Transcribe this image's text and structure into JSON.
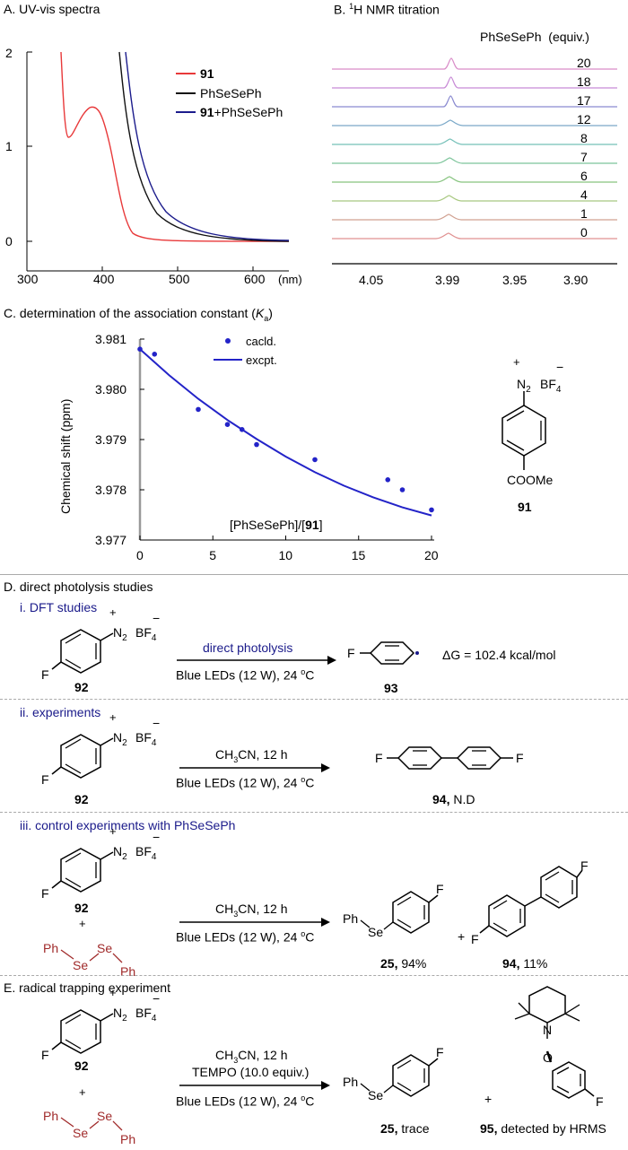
{
  "panelA": {
    "title": "A. UV-vis spectra",
    "yticks": [
      "2",
      "1",
      "0"
    ],
    "xticks": [
      "300",
      "400",
      "500",
      "600"
    ],
    "xunit": "(nm)",
    "legend": [
      {
        "name_bold": "91",
        "name_rest": "",
        "color": "#e8393a"
      },
      {
        "name_bold": "",
        "name_rest": "PhSeSePh",
        "color": "#111111"
      },
      {
        "name_bold": "91",
        "name_rest": "+PhSeSePh",
        "color": "#1c1c8c"
      }
    ]
  },
  "panelB": {
    "title_pre": "B. ",
    "title_sup": "1",
    "title_post": "H NMR titration",
    "col_header": "PhSeSePh  (equiv.)",
    "equiv": [
      "20",
      "18",
      "17",
      "12",
      "8",
      "7",
      "6",
      "4",
      "1",
      "0"
    ],
    "xticks": [
      "4.05",
      "3.99",
      "3.95",
      "3.90"
    ],
    "trace_colors": [
      "#d98cc8",
      "#c88ad6",
      "#8a8ad0",
      "#7aa8c8",
      "#74c0b8",
      "#7cc49a",
      "#86c47e",
      "#a8c880",
      "#d0a090",
      "#e09090"
    ]
  },
  "panelC": {
    "title_pre": "C. determination of the association constant (",
    "title_k": "K",
    "title_sub": "a",
    "title_post": ")",
    "ylabel": "Chemical shift (ppm)",
    "xlabel_pre": "[PhSeSePh]/[",
    "xlabel_bold": "91",
    "xlabel_post": "]",
    "legend_calc": "cacld.",
    "legend_expt": "excpt.",
    "yticks": [
      "3.981",
      "3.980",
      "3.979",
      "3.978",
      "3.977"
    ],
    "xticks": [
      "0",
      "5",
      "10",
      "15",
      "20"
    ]
  },
  "chart_data": [
    {
      "type": "scatter",
      "title": "determination of the association constant (Ka)",
      "xlabel": "[PhSeSePh]/[91]",
      "ylabel": "Chemical shift (ppm)",
      "xlim": [
        0,
        20
      ],
      "ylim": [
        3.977,
        3.981
      ],
      "series": [
        {
          "name": "cacld.",
          "x": [
            0,
            1,
            4,
            6,
            7,
            8,
            12,
            17,
            18,
            20
          ],
          "y": [
            3.9808,
            3.9807,
            3.9796,
            3.9793,
            3.9792,
            3.9789,
            3.9786,
            3.9782,
            3.978,
            3.9776
          ]
        },
        {
          "name": "excpt.",
          "x": [
            0,
            2,
            4,
            6,
            8,
            10,
            12,
            14,
            16,
            18,
            20
          ],
          "y": [
            3.9808,
            3.98028,
            3.97981,
            3.97939,
            3.97901,
            3.97866,
            3.97835,
            3.97808,
            3.97785,
            3.97765,
            3.97749
          ]
        }
      ]
    }
  ],
  "panelD": {
    "title": "D. direct photolysis studies",
    "i_title": "i. DFT studies",
    "i_arrow_top": "direct photolysis",
    "conditions": "Blue LEDs (12 W), 24 °C",
    "cond_pre": "Blue LEDs (12 W), 24 ",
    "cond_deg": "o",
    "cond_post": "C",
    "i_dg": "ΔG = 102.4 kcal/mol",
    "ii_title": "ii. experiments",
    "solvent": "CH3CN, 12 h",
    "iii_title": "iii. control experiments with PhSeSePh",
    "c92": "92",
    "c93": "93",
    "c94_nd_bold": "94,",
    "c94_nd_rest": " N.D",
    "c25_bold": "25,",
    "c25_rest": " 94%",
    "c94_bold": "94,",
    "c94_rest": " 11%",
    "plus": "+"
  },
  "panelE": {
    "title": "E. radical trapping experiment",
    "tempo": "TEMPO (10.0 equiv.)",
    "c25_bold": "25,",
    "c25_rest": " trace",
    "c95_bold": "95,",
    "c95_rest": " detected by HRMS"
  },
  "chem": {
    "F": "F",
    "N2": "N",
    "BF4": "BF",
    "plus_charge": "+",
    "minus_charge": "−",
    "Ph": "Ph",
    "Se": "Se",
    "N": "N",
    "O": "O",
    "COOMe": "COOMe",
    "c91": "91",
    "se_color": "#a02a2a"
  }
}
